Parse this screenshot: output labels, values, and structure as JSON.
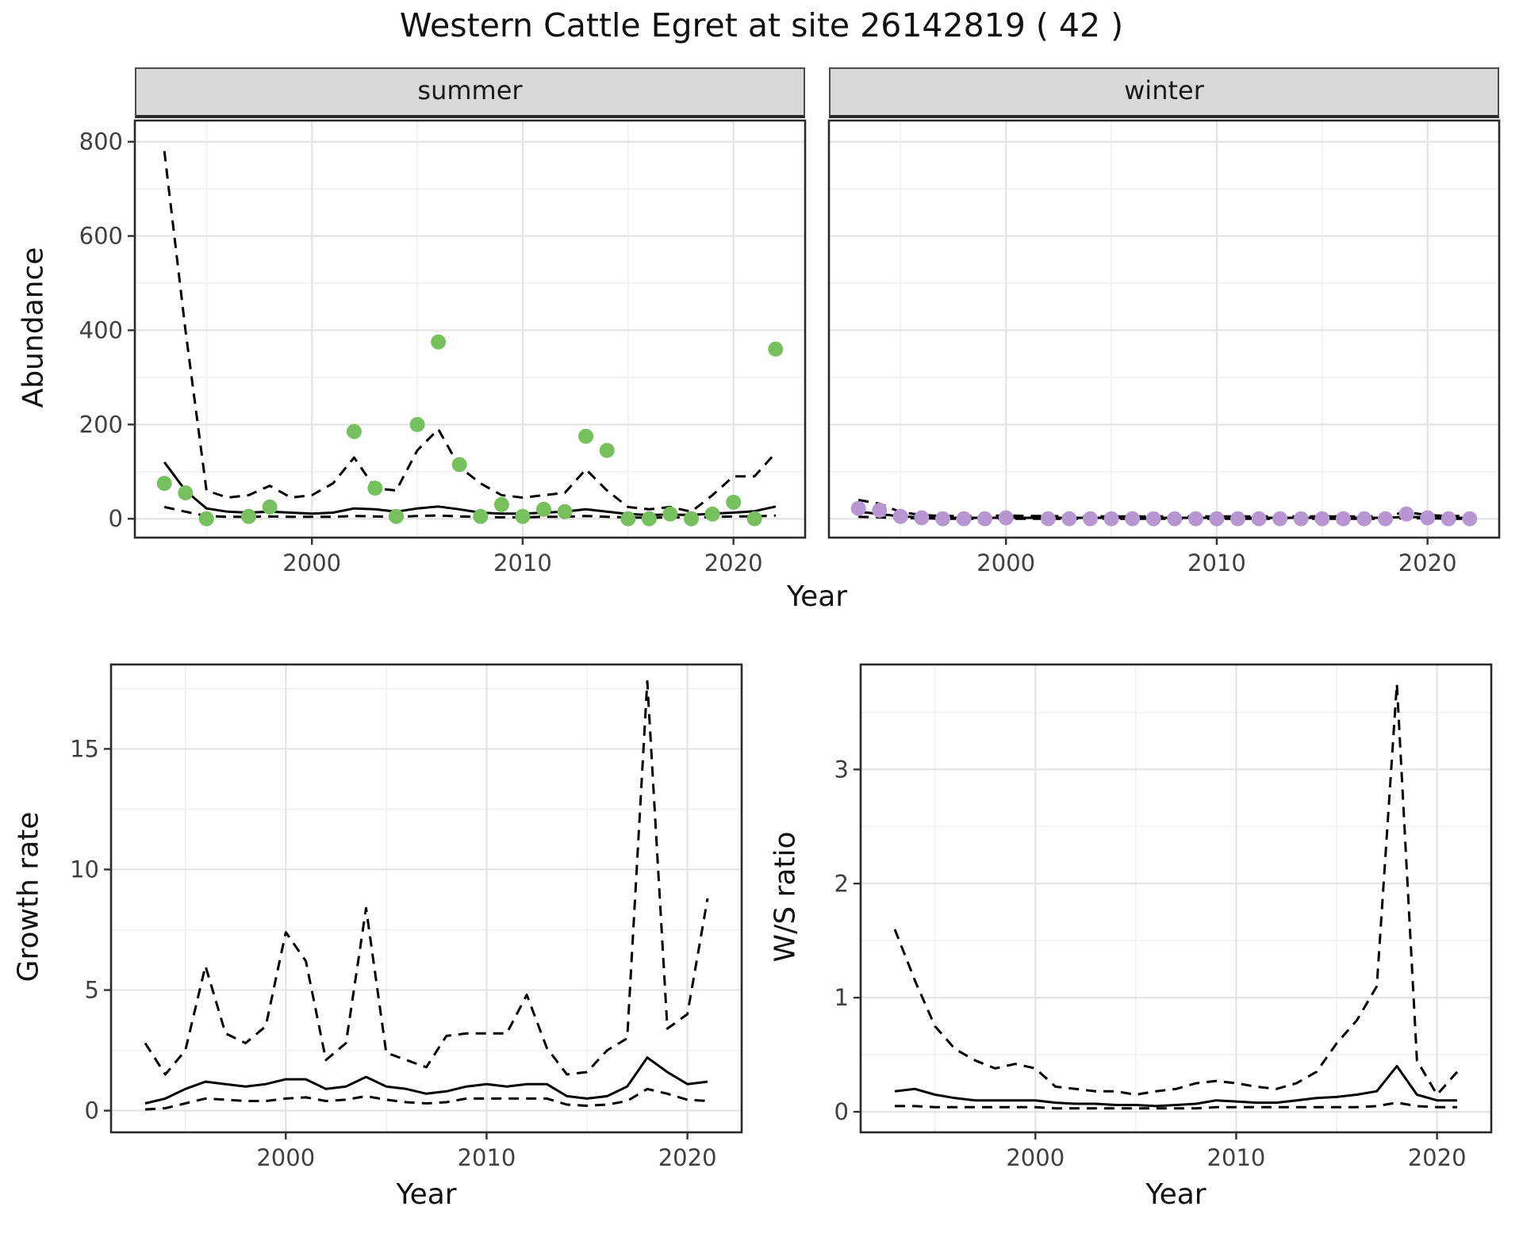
{
  "title": "Western Cattle Egret at site 26142819 ( 42 )",
  "colors": {
    "line": "#000000",
    "summer_point": "#77c05e",
    "winter_point": "#b896d2",
    "grid_major": "#e4e4e4",
    "grid_minor": "#f1f1f1",
    "panel_border": "#2a2a2a",
    "tick": "#333333",
    "tick_label": "#404040",
    "strip_bg": "#d9d9d9"
  },
  "chart_data": [
    {
      "id": "summer",
      "type": "line",
      "facet_label": "summer",
      "xlabel": "Year",
      "ylabel": "Abundance",
      "xlim": [
        1991.6,
        2023.4
      ],
      "ylim": [
        -40,
        845
      ],
      "xticks": [
        2000,
        2010,
        2020
      ],
      "yticks": [
        0,
        200,
        400,
        600,
        800
      ],
      "xminor": [
        1995,
        2005,
        2015
      ],
      "yminor": [
        100,
        300,
        500,
        700
      ],
      "show_yticklabels": true,
      "grid": true,
      "legend": "none",
      "series": [
        {
          "name": "upper-ci",
          "style": "dashed",
          "x": [
            1993,
            1994,
            1995,
            1996,
            1997,
            1998,
            1999,
            2000,
            2001,
            2002,
            2003,
            2004,
            2005,
            2006,
            2007,
            2008,
            2009,
            2010,
            2011,
            2012,
            2013,
            2014,
            2015,
            2016,
            2017,
            2018,
            2019,
            2020,
            2021,
            2022
          ],
          "y": [
            780,
            400,
            60,
            45,
            50,
            70,
            45,
            50,
            75,
            130,
            65,
            60,
            145,
            190,
            110,
            75,
            50,
            45,
            50,
            55,
            105,
            60,
            25,
            20,
            25,
            15,
            50,
            90,
            90,
            140
          ]
        },
        {
          "name": "fitted",
          "style": "solid",
          "x": [
            1993,
            1994,
            1995,
            1996,
            1997,
            1998,
            1999,
            2000,
            2001,
            2002,
            2003,
            2004,
            2005,
            2006,
            2007,
            2008,
            2009,
            2010,
            2011,
            2012,
            2013,
            2014,
            2015,
            2016,
            2017,
            2018,
            2019,
            2020,
            2021,
            2022
          ],
          "y": [
            120,
            60,
            22,
            15,
            13,
            15,
            13,
            11,
            13,
            22,
            20,
            15,
            22,
            26,
            20,
            13,
            11,
            11,
            13,
            15,
            20,
            15,
            10,
            8,
            9,
            8,
            11,
            13,
            16,
            26
          ]
        },
        {
          "name": "lower-ci",
          "style": "dashed",
          "x": [
            1993,
            1994,
            1995,
            1996,
            1997,
            1998,
            1999,
            2000,
            2001,
            2002,
            2003,
            2004,
            2005,
            2006,
            2007,
            2008,
            2009,
            2010,
            2011,
            2012,
            2013,
            2014,
            2015,
            2016,
            2017,
            2018,
            2019,
            2020,
            2021,
            2022
          ],
          "y": [
            25,
            15,
            6,
            4,
            4,
            5,
            4,
            4,
            4,
            6,
            5,
            4,
            6,
            7,
            5,
            4,
            3,
            3,
            4,
            4,
            6,
            4,
            3,
            2,
            3,
            2,
            4,
            5,
            5,
            7
          ]
        },
        {
          "name": "observed",
          "style": "points",
          "color": "#77c05e",
          "x": [
            1993,
            1994,
            1995,
            1997,
            1998,
            2002,
            2003,
            2004,
            2005,
            2006,
            2007,
            2008,
            2009,
            2010,
            2011,
            2012,
            2013,
            2014,
            2015,
            2016,
            2017,
            2018,
            2019,
            2020,
            2021,
            2022
          ],
          "y": [
            75,
            55,
            0,
            5,
            25,
            185,
            65,
            5,
            200,
            375,
            115,
            5,
            30,
            5,
            20,
            15,
            175,
            145,
            0,
            0,
            10,
            0,
            10,
            35,
            0,
            360
          ]
        }
      ]
    },
    {
      "id": "winter",
      "type": "line",
      "facet_label": "winter",
      "xlabel": "Year",
      "ylabel": "Abundance",
      "xlim": [
        1991.6,
        2023.4
      ],
      "ylim": [
        -40,
        845
      ],
      "xticks": [
        2000,
        2010,
        2020
      ],
      "yticks": [
        0,
        200,
        400,
        600,
        800
      ],
      "xminor": [
        1995,
        2005,
        2015
      ],
      "yminor": [
        100,
        300,
        500,
        700
      ],
      "show_yticklabels": false,
      "grid": true,
      "legend": "none",
      "series": [
        {
          "name": "upper-ci",
          "style": "dashed",
          "x": [
            1993,
            1994,
            1995,
            1996,
            1997,
            1998,
            1999,
            2000,
            2001,
            2002,
            2003,
            2004,
            2005,
            2006,
            2007,
            2008,
            2009,
            2010,
            2011,
            2012,
            2013,
            2014,
            2015,
            2016,
            2017,
            2018,
            2019,
            2020,
            2021,
            2022
          ],
          "y": [
            40,
            32,
            14,
            8,
            6,
            6,
            6,
            7,
            6,
            6,
            5,
            5,
            5,
            5,
            5,
            5,
            5,
            5,
            5,
            5,
            5,
            5,
            5,
            5,
            5,
            6,
            14,
            8,
            6,
            6
          ]
        },
        {
          "name": "fitted",
          "style": "solid",
          "x": [
            1993,
            1994,
            1995,
            1996,
            1997,
            1998,
            1999,
            2000,
            2001,
            2002,
            2003,
            2004,
            2005,
            2006,
            2007,
            2008,
            2009,
            2010,
            2011,
            2012,
            2013,
            2014,
            2015,
            2016,
            2017,
            2018,
            2019,
            2020,
            2021,
            2022
          ],
          "y": [
            15,
            10,
            5,
            3,
            2,
            2,
            2,
            2,
            2,
            2,
            2,
            2,
            2,
            2,
            2,
            2,
            2,
            2,
            2,
            2,
            2,
            2,
            2,
            2,
            2,
            2,
            4,
            3,
            2,
            2
          ]
        },
        {
          "name": "lower-ci",
          "style": "dashed",
          "x": [
            1993,
            1994,
            1995,
            1996,
            1997,
            1998,
            1999,
            2000,
            2001,
            2002,
            2003,
            2004,
            2005,
            2006,
            2007,
            2008,
            2009,
            2010,
            2011,
            2012,
            2013,
            2014,
            2015,
            2016,
            2017,
            2018,
            2019,
            2020,
            2021,
            2022
          ],
          "y": [
            4,
            3,
            1,
            1,
            0,
            0,
            0,
            0,
            0,
            0,
            0,
            0,
            0,
            0,
            0,
            0,
            0,
            0,
            0,
            0,
            0,
            0,
            0,
            0,
            0,
            0,
            1,
            1,
            0,
            0
          ]
        },
        {
          "name": "observed",
          "style": "points",
          "color": "#b896d2",
          "x": [
            1993,
            1994,
            1995,
            1996,
            1997,
            1998,
            1999,
            2000,
            2002,
            2003,
            2004,
            2005,
            2006,
            2007,
            2008,
            2009,
            2010,
            2011,
            2012,
            2013,
            2014,
            2015,
            2016,
            2017,
            2018,
            2019,
            2020,
            2021,
            2022
          ],
          "y": [
            22,
            18,
            5,
            2,
            0,
            0,
            0,
            2,
            0,
            0,
            0,
            0,
            0,
            0,
            0,
            0,
            0,
            0,
            0,
            0,
            0,
            0,
            0,
            0,
            0,
            10,
            2,
            0,
            0
          ]
        }
      ]
    },
    {
      "id": "growth",
      "type": "line",
      "facet_label": "",
      "xlabel": "Year",
      "ylabel": "Growth rate",
      "xlim": [
        1991.3,
        2022.7
      ],
      "ylim": [
        -0.9,
        18.5
      ],
      "xticks": [
        2000,
        2010,
        2020
      ],
      "yticks": [
        0,
        5,
        10,
        15
      ],
      "xminor": [
        1995,
        2005,
        2015
      ],
      "yminor": [
        2.5,
        7.5,
        12.5,
        17.5
      ],
      "show_yticklabels": true,
      "grid": true,
      "legend": "none",
      "series": [
        {
          "name": "upper-ci",
          "style": "dashed",
          "x": [
            1993,
            1994,
            1995,
            1996,
            1997,
            1998,
            1999,
            2000,
            2001,
            2002,
            2003,
            2004,
            2005,
            2006,
            2007,
            2008,
            2009,
            2010,
            2011,
            2012,
            2013,
            2014,
            2015,
            2016,
            2017,
            2018,
            2019,
            2020,
            2021
          ],
          "y": [
            2.8,
            1.5,
            2.5,
            6.0,
            3.2,
            2.8,
            3.5,
            7.4,
            6.2,
            2.1,
            2.8,
            8.4,
            2.4,
            2.1,
            1.8,
            3.1,
            3.2,
            3.2,
            3.2,
            4.8,
            2.6,
            1.5,
            1.6,
            2.5,
            3.0,
            17.8,
            3.4,
            4.0,
            8.8
          ]
        },
        {
          "name": "fitted",
          "style": "solid",
          "x": [
            1993,
            1994,
            1995,
            1996,
            1997,
            1998,
            1999,
            2000,
            2001,
            2002,
            2003,
            2004,
            2005,
            2006,
            2007,
            2008,
            2009,
            2010,
            2011,
            2012,
            2013,
            2014,
            2015,
            2016,
            2017,
            2018,
            2019,
            2020,
            2021
          ],
          "y": [
            0.3,
            0.5,
            0.9,
            1.2,
            1.1,
            1.0,
            1.1,
            1.3,
            1.3,
            0.9,
            1.0,
            1.4,
            1.0,
            0.9,
            0.7,
            0.8,
            1.0,
            1.1,
            1.0,
            1.1,
            1.1,
            0.6,
            0.5,
            0.6,
            1.0,
            2.2,
            1.6,
            1.1,
            1.2
          ]
        },
        {
          "name": "lower-ci",
          "style": "dashed",
          "x": [
            1993,
            1994,
            1995,
            1996,
            1997,
            1998,
            1999,
            2000,
            2001,
            2002,
            2003,
            2004,
            2005,
            2006,
            2007,
            2008,
            2009,
            2010,
            2011,
            2012,
            2013,
            2014,
            2015,
            2016,
            2017,
            2018,
            2019,
            2020,
            2021
          ],
          "y": [
            0.05,
            0.1,
            0.3,
            0.5,
            0.45,
            0.4,
            0.4,
            0.5,
            0.55,
            0.4,
            0.45,
            0.6,
            0.45,
            0.35,
            0.3,
            0.35,
            0.5,
            0.5,
            0.5,
            0.5,
            0.5,
            0.25,
            0.2,
            0.25,
            0.4,
            0.9,
            0.7,
            0.45,
            0.4
          ]
        }
      ]
    },
    {
      "id": "ws",
      "type": "line",
      "facet_label": "",
      "xlabel": "Year",
      "ylabel": "W/S ratio",
      "xlim": [
        1991.3,
        2022.7
      ],
      "ylim": [
        -0.18,
        3.92
      ],
      "xticks": [
        2000,
        2010,
        2020
      ],
      "yticks": [
        0,
        1,
        2,
        3
      ],
      "xminor": [
        1995,
        2005,
        2015
      ],
      "yminor": [
        0.5,
        1.5,
        2.5,
        3.5
      ],
      "show_yticklabels": true,
      "grid": true,
      "legend": "none",
      "series": [
        {
          "name": "upper-ci",
          "style": "dashed",
          "x": [
            1993,
            1994,
            1995,
            1996,
            1997,
            1998,
            1999,
            2000,
            2001,
            2002,
            2003,
            2004,
            2005,
            2006,
            2007,
            2008,
            2009,
            2010,
            2011,
            2012,
            2013,
            2014,
            2015,
            2016,
            2017,
            2018,
            2019,
            2020,
            2021
          ],
          "y": [
            1.6,
            1.15,
            0.75,
            0.55,
            0.45,
            0.38,
            0.42,
            0.38,
            0.22,
            0.2,
            0.18,
            0.18,
            0.15,
            0.18,
            0.2,
            0.25,
            0.27,
            0.25,
            0.22,
            0.2,
            0.25,
            0.35,
            0.6,
            0.8,
            1.1,
            3.75,
            0.45,
            0.15,
            0.35
          ]
        },
        {
          "name": "fitted",
          "style": "solid",
          "x": [
            1993,
            1994,
            1995,
            1996,
            1997,
            1998,
            1999,
            2000,
            2001,
            2002,
            2003,
            2004,
            2005,
            2006,
            2007,
            2008,
            2009,
            2010,
            2011,
            2012,
            2013,
            2014,
            2015,
            2016,
            2017,
            2018,
            2019,
            2020,
            2021
          ],
          "y": [
            0.18,
            0.2,
            0.15,
            0.12,
            0.1,
            0.1,
            0.1,
            0.1,
            0.08,
            0.07,
            0.07,
            0.06,
            0.06,
            0.05,
            0.06,
            0.07,
            0.1,
            0.09,
            0.08,
            0.08,
            0.1,
            0.12,
            0.13,
            0.15,
            0.18,
            0.4,
            0.15,
            0.1,
            0.1
          ]
        },
        {
          "name": "lower-ci",
          "style": "dashed",
          "x": [
            1993,
            1994,
            1995,
            1996,
            1997,
            1998,
            1999,
            2000,
            2001,
            2002,
            2003,
            2004,
            2005,
            2006,
            2007,
            2008,
            2009,
            2010,
            2011,
            2012,
            2013,
            2014,
            2015,
            2016,
            2017,
            2018,
            2019,
            2020,
            2021
          ],
          "y": [
            0.05,
            0.05,
            0.04,
            0.04,
            0.04,
            0.04,
            0.04,
            0.04,
            0.03,
            0.03,
            0.03,
            0.03,
            0.03,
            0.03,
            0.03,
            0.03,
            0.04,
            0.04,
            0.04,
            0.04,
            0.04,
            0.04,
            0.04,
            0.04,
            0.05,
            0.08,
            0.05,
            0.04,
            0.04
          ]
        }
      ]
    }
  ]
}
